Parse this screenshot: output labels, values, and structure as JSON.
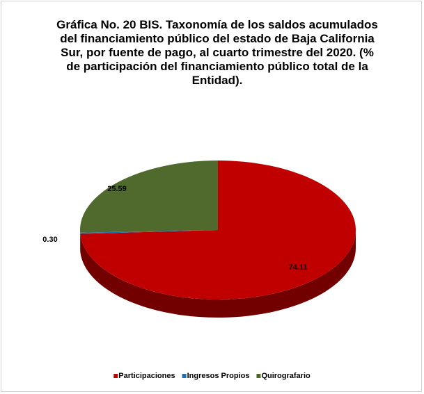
{
  "chart_data": {
    "type": "pie3d",
    "title": "Gráfica No. 20 BIS. Taxonomía de los saldos acumulados del financiamiento público del estado de Baja California Sur, por fuente de pago, al cuarto trimestre del 2020. (% de participación del financiamiento público total de la Entidad).",
    "categories": [
      "Participaciones",
      "Ingresos Propios",
      "Quirografario"
    ],
    "values": [
      74.11,
      0.3,
      25.59
    ],
    "value_labels": [
      "74.11",
      "0.30",
      "25.59"
    ],
    "colors": [
      "#c00000",
      "#1f6fb4",
      "#4f6a2c"
    ],
    "legend": "bottom"
  }
}
